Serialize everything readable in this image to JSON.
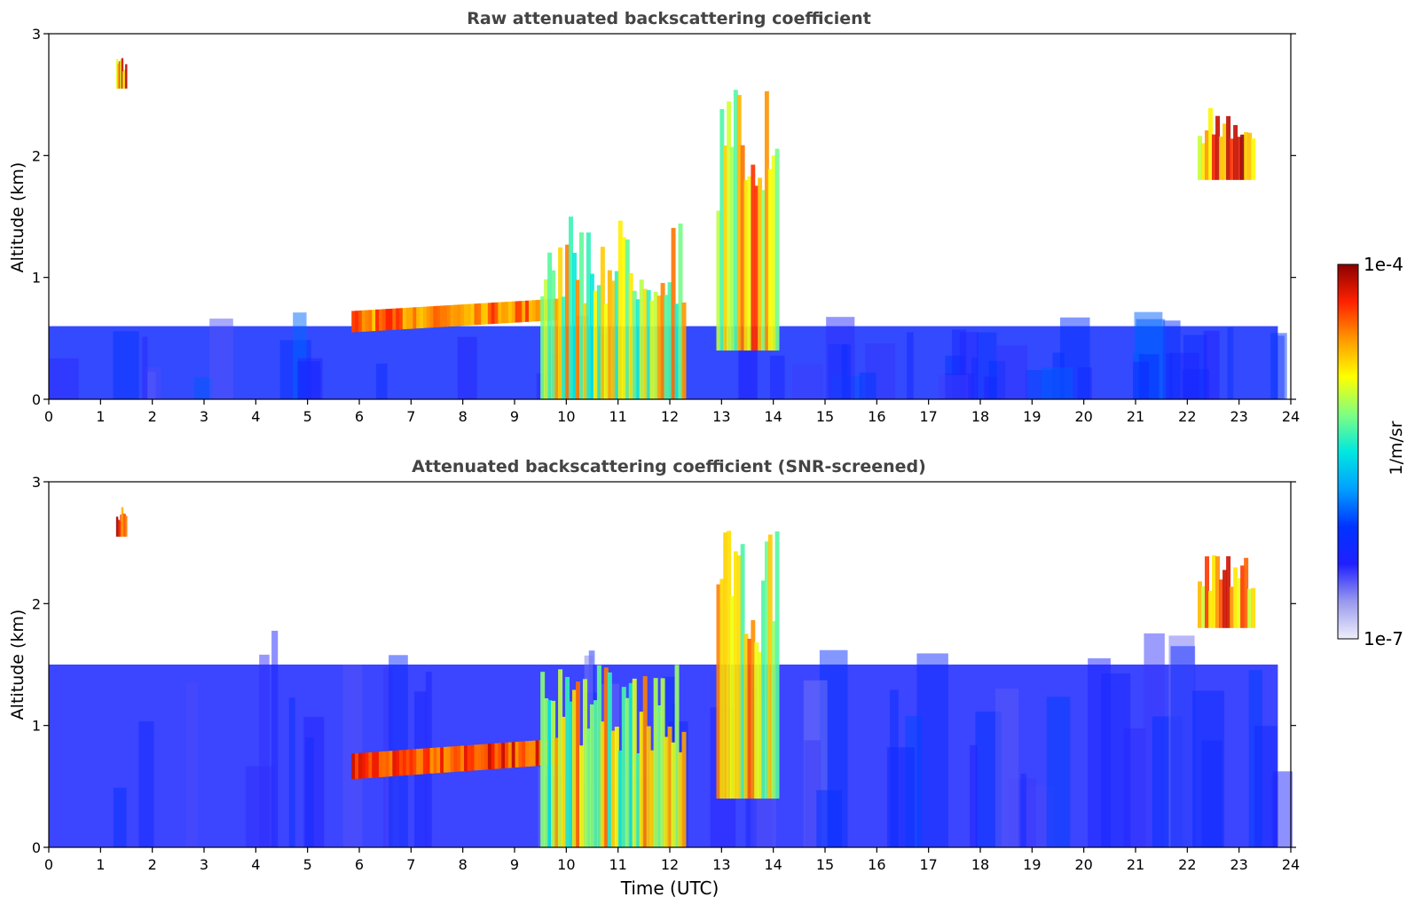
{
  "chart_data": [
    {
      "type": "heatmap",
      "title": "Raw attenuated backscattering coefficient",
      "xlabel": "",
      "ylabel": "Altitude (km)",
      "xlim": [
        0,
        24
      ],
      "ylim": [
        0,
        3
      ],
      "xticks": [
        "0",
        "1",
        "2",
        "3",
        "4",
        "5",
        "6",
        "7",
        "8",
        "9",
        "10",
        "11",
        "12",
        "13",
        "14",
        "15",
        "16",
        "17",
        "18",
        "19",
        "20",
        "21",
        "22",
        "23",
        "24"
      ],
      "yticks": [
        "0",
        "1",
        "2",
        "3"
      ],
      "features": [
        {
          "kind": "surface-layer",
          "x": [
            0,
            23.75
          ],
          "y": [
            0,
            0.6
          ],
          "level": 0.15
        },
        {
          "kind": "aerosol-layer",
          "x": [
            5.85,
            9.8
          ],
          "y": [
            0.5,
            0.75
          ],
          "level": 0.9
        },
        {
          "kind": "cloud",
          "x": [
            9.5,
            12.3
          ],
          "y": [
            0,
            1.5
          ],
          "level": 0.75
        },
        {
          "kind": "cloud",
          "x": [
            12.9,
            14.1
          ],
          "y": [
            0.4,
            2.6
          ],
          "level": 0.8
        },
        {
          "kind": "cloud",
          "x": [
            1.3,
            1.5
          ],
          "y": [
            2.55,
            2.8
          ],
          "level": 0.9
        },
        {
          "kind": "cloud",
          "x": [
            22.2,
            23.3
          ],
          "y": [
            1.8,
            2.4
          ],
          "level": 0.9
        }
      ]
    },
    {
      "type": "heatmap",
      "title": "Attenuated backscattering coefficient (SNR-screened)",
      "xlabel": "Time (UTC)",
      "ylabel": "Altitude (km)",
      "xlim": [
        0,
        24
      ],
      "ylim": [
        0,
        3
      ],
      "xticks": [
        "0",
        "1",
        "2",
        "3",
        "4",
        "5",
        "6",
        "7",
        "8",
        "9",
        "10",
        "11",
        "12",
        "13",
        "14",
        "15",
        "16",
        "17",
        "18",
        "19",
        "20",
        "21",
        "22",
        "23",
        "24"
      ],
      "yticks": [
        "0",
        "1",
        "2",
        "3"
      ],
      "features": [
        {
          "kind": "surface-layer",
          "x": [
            0,
            23.75
          ],
          "y": [
            0,
            1.5
          ],
          "level": 0.12
        },
        {
          "kind": "aerosol-layer",
          "x": [
            5.85,
            9.8
          ],
          "y": [
            0.5,
            0.8
          ],
          "level": 0.95
        },
        {
          "kind": "cloud",
          "x": [
            9.5,
            12.3
          ],
          "y": [
            0,
            1.5
          ],
          "level": 0.75
        },
        {
          "kind": "cloud",
          "x": [
            12.9,
            14.1
          ],
          "y": [
            0.4,
            2.6
          ],
          "level": 0.8
        },
        {
          "kind": "cloud",
          "x": [
            1.3,
            1.5
          ],
          "y": [
            2.55,
            2.8
          ],
          "level": 0.9
        },
        {
          "kind": "cloud",
          "x": [
            22.2,
            23.3
          ],
          "y": [
            1.8,
            2.4
          ],
          "level": 0.9
        }
      ]
    }
  ],
  "colorbar": {
    "label": "1/m/sr",
    "max_label": "1e-4",
    "min_label": "1e-7",
    "colors": [
      "#eeeefa",
      "#9999ee",
      "#2020ff",
      "#0033ff",
      "#00a0ff",
      "#00e8e0",
      "#80ff80",
      "#ffff00",
      "#ff9900",
      "#ff2200",
      "#8b0000"
    ]
  }
}
